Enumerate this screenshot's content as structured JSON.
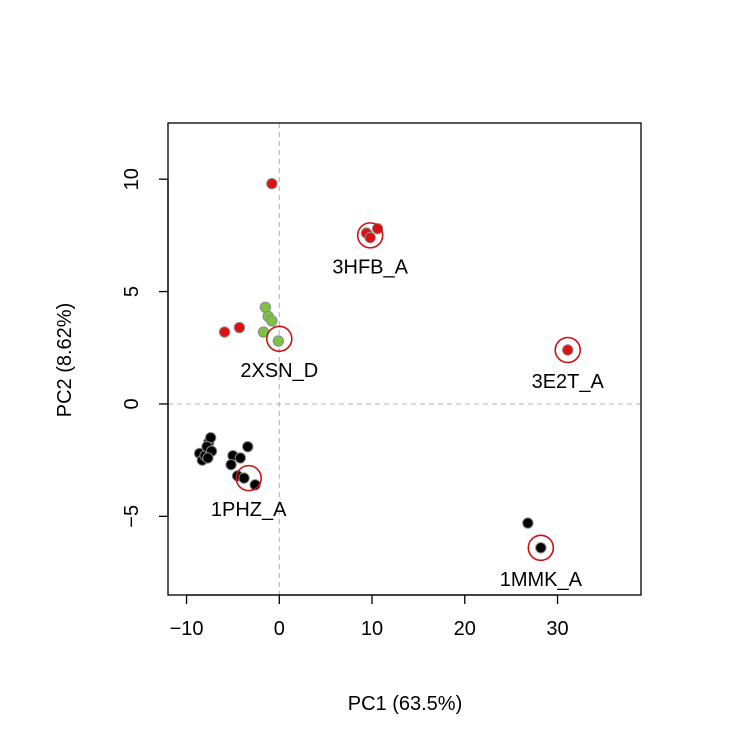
{
  "chart_data": {
    "type": "scatter",
    "title": "",
    "xlabel": "PC1 (63.5%)",
    "ylabel": "PC2 (8.62%)",
    "xlim": [
      -12,
      39
    ],
    "ylim": [
      -8.5,
      12.5
    ],
    "xticks": [
      -10,
      0,
      10,
      20,
      30
    ],
    "xtick_labels": [
      "−10",
      "0",
      "10",
      "20",
      "30"
    ],
    "yticks": [
      -5,
      0,
      5,
      10
    ],
    "ytick_labels": [
      "−5",
      "0",
      "5",
      "10"
    ],
    "grid": false,
    "reference_lines": {
      "x": 0,
      "y": 0,
      "style": "dashed",
      "color": "#bbbbbb"
    },
    "groups": [
      {
        "color": "#000000",
        "points": [
          {
            "x": -8.6,
            "y": -2.2
          },
          {
            "x": -8.3,
            "y": -2.5
          },
          {
            "x": -8.0,
            "y": -2.3
          },
          {
            "x": -7.6,
            "y": -1.7
          },
          {
            "x": -7.4,
            "y": -1.5
          },
          {
            "x": -7.8,
            "y": -1.9
          },
          {
            "x": -7.3,
            "y": -2.1
          },
          {
            "x": -7.7,
            "y": -2.4
          },
          {
            "x": -5.0,
            "y": -2.3
          },
          {
            "x": -5.2,
            "y": -2.7
          },
          {
            "x": -4.2,
            "y": -2.4
          },
          {
            "x": -3.4,
            "y": -1.9
          },
          {
            "x": -4.5,
            "y": -3.2
          },
          {
            "x": -3.8,
            "y": -3.3
          },
          {
            "x": -2.6,
            "y": -3.6
          },
          {
            "x": 26.8,
            "y": -5.3
          },
          {
            "x": 28.2,
            "y": -6.4
          }
        ]
      },
      {
        "color": "#dd1111",
        "points": [
          {
            "x": -0.8,
            "y": 9.8
          },
          {
            "x": -5.9,
            "y": 3.2
          },
          {
            "x": -4.3,
            "y": 3.4
          },
          {
            "x": 9.4,
            "y": 7.6
          },
          {
            "x": 9.8,
            "y": 7.4
          },
          {
            "x": 10.6,
            "y": 7.8
          },
          {
            "x": 31.1,
            "y": 2.4
          }
        ]
      },
      {
        "color": "#7cc243",
        "points": [
          {
            "x": -1.5,
            "y": 4.3
          },
          {
            "x": -1.2,
            "y": 3.9
          },
          {
            "x": -0.8,
            "y": 3.7
          },
          {
            "x": -1.7,
            "y": 3.2
          },
          {
            "x": -0.1,
            "y": 2.8
          }
        ]
      }
    ],
    "highlighted": [
      {
        "label": "3HFB_A",
        "x": 9.8,
        "y": 7.5
      },
      {
        "label": "2XSN_D",
        "x": 0.0,
        "y": 2.9
      },
      {
        "label": "3E2T_A",
        "x": 31.1,
        "y": 2.4
      },
      {
        "label": "1PHZ_A",
        "x": -3.3,
        "y": -3.3
      },
      {
        "label": "1MMK_A",
        "x": 28.2,
        "y": -6.4
      }
    ],
    "highlight_color": "#cc1111"
  }
}
